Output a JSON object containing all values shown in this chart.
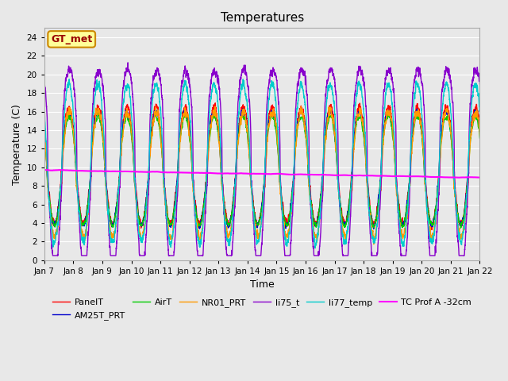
{
  "title": "Temperatures",
  "xlabel": "Time",
  "ylabel": "Temperature (C)",
  "ylim": [
    0,
    25
  ],
  "yticks": [
    0,
    2,
    4,
    6,
    8,
    10,
    12,
    14,
    16,
    18,
    20,
    22,
    24
  ],
  "annotation_text": "GT_met",
  "annotation_bg": "#ffff99",
  "annotation_border": "#cc8800",
  "series_order": [
    "PanelT",
    "AM25T_PRT",
    "AirT",
    "NR01_PRT",
    "li75_t",
    "li77_temp",
    "TC Prof A -32cm"
  ],
  "series": {
    "PanelT": {
      "color": "#ff0000",
      "lw": 1.0
    },
    "AM25T_PRT": {
      "color": "#0000cc",
      "lw": 1.0
    },
    "AirT": {
      "color": "#00cc00",
      "lw": 1.0
    },
    "NR01_PRT": {
      "color": "#ff9900",
      "lw": 1.0
    },
    "li75_t": {
      "color": "#8800cc",
      "lw": 1.0
    },
    "li77_temp": {
      "color": "#00cccc",
      "lw": 1.0
    },
    "TC Prof A -32cm": {
      "color": "#ff00ff",
      "lw": 1.5
    }
  },
  "xticklabels": [
    "Jan 7",
    "Jan 8",
    "Jan 9",
    "Jan 10",
    "Jan 11",
    "Jan 12",
    "Jan 13",
    "Jan 14",
    "Jan 15",
    "Jan 16",
    "Jan 17",
    "Jan 18",
    "Jan 19",
    "Jan 20",
    "Jan 21",
    "Jan 22"
  ],
  "legend_ncol_row1": 6,
  "num_days": 15,
  "points_per_day": 288,
  "bg_color": "#e8e8e8"
}
